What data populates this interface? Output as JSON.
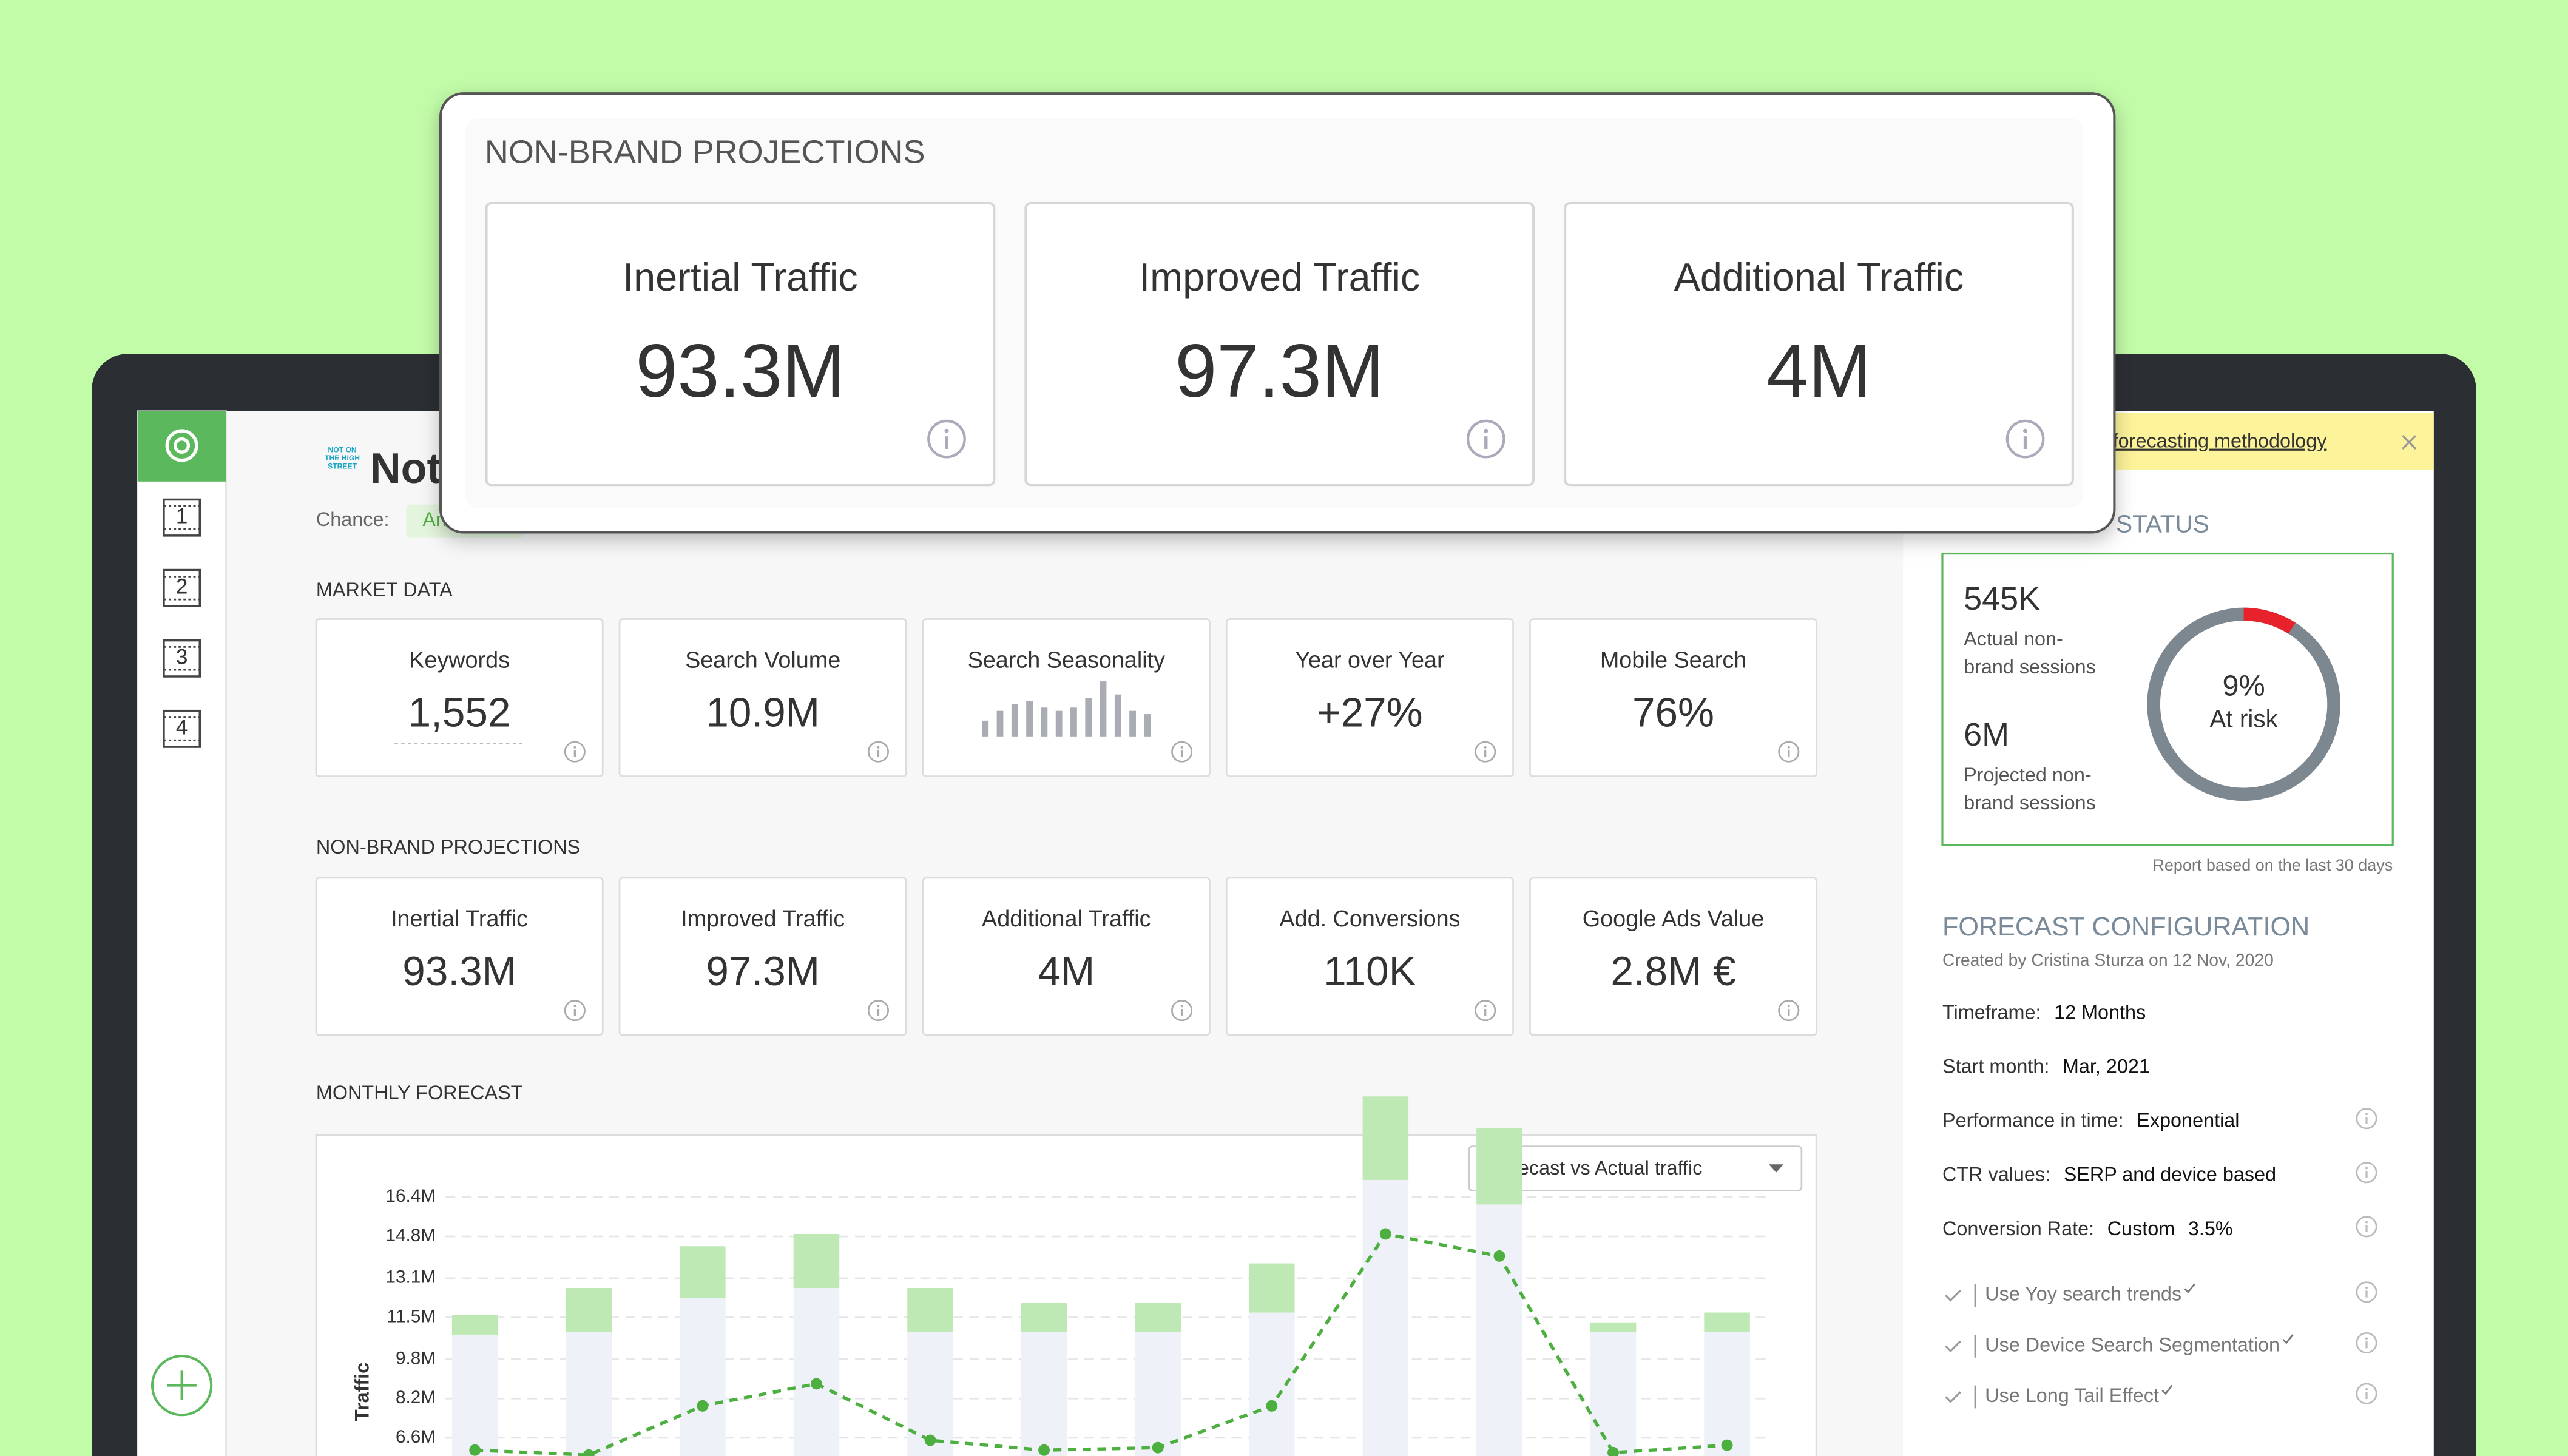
{
  "popup": {
    "title": "NON-BRAND PROJECTIONS",
    "cards": [
      {
        "label": "Inertial Traffic",
        "value": "93.3M"
      },
      {
        "label": "Improved Traffic",
        "value": "97.3M"
      },
      {
        "label": "Additional Traffic",
        "value": "4M"
      }
    ]
  },
  "sidebar": {
    "items": [
      "1",
      "2",
      "3",
      "4"
    ]
  },
  "header": {
    "logo_text": [
      "NOT ON",
      "THE HIGH",
      "STREET"
    ],
    "title": "Not",
    "chance_label": "Chance:",
    "chance_value": "An"
  },
  "market_data": {
    "title": "MARKET DATA",
    "cards": [
      {
        "label": "Keywords",
        "value": "1,552"
      },
      {
        "label": "Search Volume",
        "value": "10.9M"
      },
      {
        "label": "Search Seasonality",
        "sparkline": [
          10,
          16,
          20,
          22,
          18,
          16,
          18,
          24,
          34,
          26,
          16,
          14
        ]
      },
      {
        "label": "Year over Year",
        "value": "+27%"
      },
      {
        "label": "Mobile Search",
        "value": "76%"
      }
    ]
  },
  "projections": {
    "title": "NON-BRAND PROJECTIONS",
    "cards": [
      {
        "label": "Inertial Traffic",
        "value": "93.3M"
      },
      {
        "label": "Improved Traffic",
        "value": "97.3M"
      },
      {
        "label": "Additional Traffic",
        "value": "4M"
      },
      {
        "label": "Add. Conversions",
        "value": "110K"
      },
      {
        "label": "Google Ads Value",
        "value": "2.8M €"
      }
    ]
  },
  "chart_data": {
    "type": "bar",
    "title": "MONTHLY FORECAST",
    "dropdown": "Forecast vs Actual traffic",
    "ylabel": "Traffic",
    "ylim": [
      5,
      16.4
    ],
    "yticks": [
      {
        "value": 16.4,
        "label": "16.4M"
      },
      {
        "value": 14.8,
        "label": "14.8M"
      },
      {
        "value": 13.1,
        "label": "13.1M"
      },
      {
        "value": 11.5,
        "label": "11.5M"
      },
      {
        "value": 9.8,
        "label": "9.8M"
      },
      {
        "value": 8.2,
        "label": "8.2M"
      },
      {
        "value": 6.6,
        "label": "6.6M"
      }
    ],
    "grid": true,
    "series": [
      {
        "color": "#eef1f8",
        "values": [
          5.8,
          5.9,
          7.3,
          7.7,
          5.9,
          5.9,
          5.9,
          6.7,
          12.1,
          11.1,
          5.9,
          5.9
        ]
      },
      {
        "color": "#bfe9b4",
        "values": [
          0.8,
          1.8,
          2.1,
          2.2,
          1.8,
          1.2,
          1.2,
          2.0,
          3.4,
          3.1,
          0.4,
          0.8
        ]
      }
    ],
    "line": {
      "color": "#4caf3f",
      "values": [
        6.1,
        5.9,
        7.9,
        8.8,
        6.5,
        6.1,
        6.2,
        7.9,
        14.9,
        14.0,
        6.0,
        6.3
      ]
    }
  },
  "banner": {
    "link": "forecasting methodology"
  },
  "status": {
    "title": "STATUS",
    "actual_value": "545K",
    "actual_label": [
      "Actual non-",
      "brand sessions"
    ],
    "projected_value": "6M",
    "projected_label": [
      "Projected non-",
      "brand sessions"
    ],
    "risk": {
      "value": 9,
      "label": "9%",
      "text": "At risk"
    },
    "note": "Report based on the last 30 days"
  },
  "config": {
    "title": "FORECAST CONFIGURATION",
    "created": "Created by Cristina Sturza on 12 Nov, 2020",
    "rows": [
      {
        "label": "Timeframe:",
        "value": "12 Months"
      },
      {
        "label": "Start month:",
        "value": "Mar, 2021"
      },
      {
        "label": "Performance in time:",
        "value": "Exponential"
      },
      {
        "label": "CTR values:",
        "value": "SERP and device based"
      },
      {
        "label": "Conversion Rate:",
        "value": "Custom",
        "extra": "3.5%"
      }
    ],
    "options": [
      "Use Yoy search trends",
      "Use Device Search Segmentation",
      "Use Long Tail Effect"
    ]
  }
}
